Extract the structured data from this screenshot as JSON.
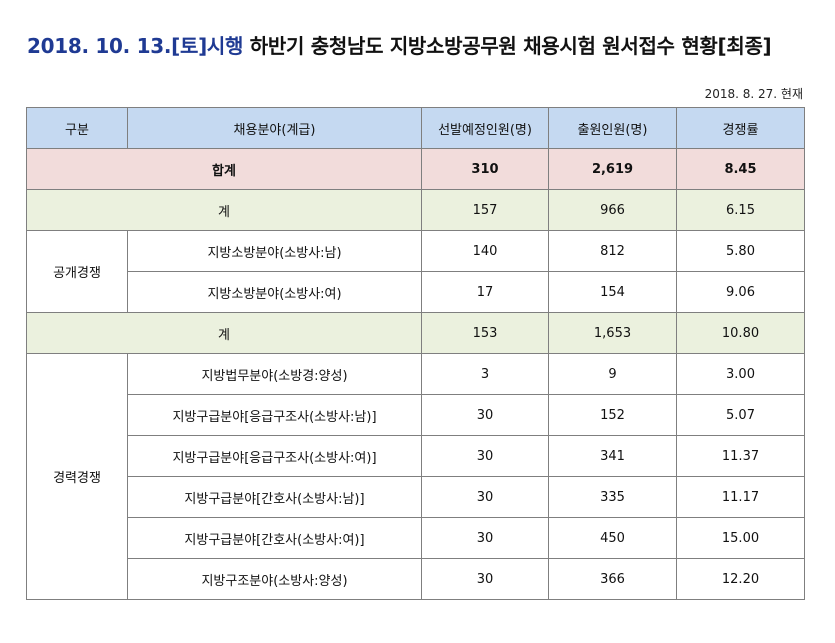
{
  "title": {
    "prefix": "2018. 10. 13.[토]시행",
    "main": " 하반기 충청남도 지방소방공무원 채용시험 원서접수 현황[최종]"
  },
  "as_of": "2018. 8. 27. 현재",
  "table": {
    "headers": [
      "구분",
      "채용분야(계급)",
      "선발예정인원(명)",
      "출원인원(명)",
      "경쟁률"
    ],
    "total": {
      "label": "합계",
      "planned": "310",
      "applicants": "2,619",
      "ratio": "8.45"
    },
    "groups": [
      {
        "name": "공개경쟁",
        "subtotal": {
          "label": "계",
          "planned": "157",
          "applicants": "966",
          "ratio": "6.15"
        },
        "rows": [
          {
            "field": "지방소방분야(소방사:남)",
            "planned": "140",
            "applicants": "812",
            "ratio": "5.80"
          },
          {
            "field": "지방소방분야(소방사:여)",
            "planned": "17",
            "applicants": "154",
            "ratio": "9.06"
          }
        ]
      },
      {
        "name": "경력경쟁",
        "subtotal": {
          "label": "계",
          "planned": "153",
          "applicants": "1,653",
          "ratio": "10.80"
        },
        "rows": [
          {
            "field": "지방법무분야(소방경:양성)",
            "planned": "3",
            "applicants": "9",
            "ratio": "3.00"
          },
          {
            "field": "지방구급분야[응급구조사(소방사:남)]",
            "planned": "30",
            "applicants": "152",
            "ratio": "5.07"
          },
          {
            "field": "지방구급분야[응급구조사(소방사:여)]",
            "planned": "30",
            "applicants": "341",
            "ratio": "11.37"
          },
          {
            "field": "지방구급분야[간호사(소방사:남)]",
            "planned": "30",
            "applicants": "335",
            "ratio": "11.17"
          },
          {
            "field": "지방구급분야[간호사(소방사:여)]",
            "planned": "30",
            "applicants": "450",
            "ratio": "15.00"
          },
          {
            "field": "지방구조분야(소방사:양성)",
            "planned": "30",
            "applicants": "366",
            "ratio": "12.20"
          }
        ]
      }
    ]
  },
  "colors": {
    "title_accent": "#1f3a93",
    "header_bg": "#c5d9f1",
    "total_bg": "#f2dcdb",
    "subtotal_bg": "#ebf1de",
    "border": "#7f7f7f"
  }
}
